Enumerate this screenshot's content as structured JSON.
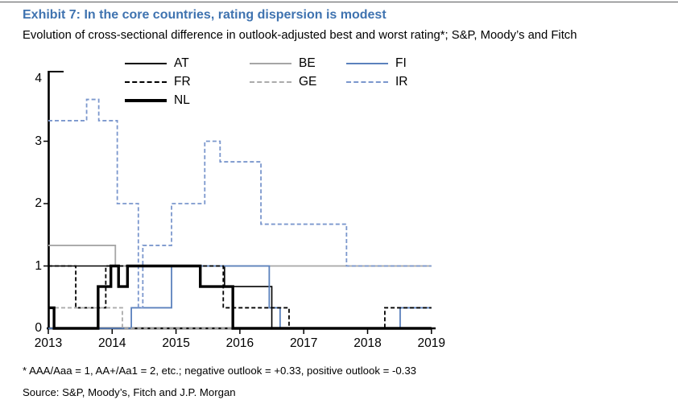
{
  "header": {
    "title": "Exhibit 7: In the core countries, rating dispersion is modest",
    "subtitle": "Evolution of cross-sectional difference in outlook-adjusted best and worst rating*; S&P, Moody’s and Fitch"
  },
  "footnote": "* AAA/Aaa = 1, AA+/Aa1 = 2, etc.; negative outlook = +0.33, positive outlook = -0.33",
  "source": "Source: S&P, Moody’s, Fitch and J.P. Morgan",
  "colors": {
    "title": "#3f73b0",
    "text": "#000000",
    "axis": "#000000",
    "top_border": "#58595b",
    "black_series": "#000000",
    "gray_series": "#a6a6a6",
    "blue_series": "#5b81bd",
    "light_blue_series": "#7b97cd"
  },
  "chart_data": {
    "type": "line",
    "step": true,
    "grid": false,
    "legend_position": "top-left",
    "x_range": [
      2013,
      2019
    ],
    "y_range": [
      0,
      4
    ],
    "x_ticks": [
      "2013",
      "2014",
      "2015",
      "2016",
      "2017",
      "2018",
      "2019"
    ],
    "y_ticks": [
      "0",
      "1",
      "2",
      "3",
      "4"
    ],
    "series": [
      {
        "name": "AT",
        "color": "#000000",
        "line": "solid",
        "weight": 1.6,
        "points": [
          [
            2013,
            1
          ],
          [
            2015.76,
            0.67
          ],
          [
            2016.5,
            0
          ]
        ]
      },
      {
        "name": "BE",
        "color": "#a6a6a6",
        "line": "solid",
        "weight": 1.8,
        "points": [
          [
            2013,
            1.33
          ],
          [
            2014.05,
            1
          ]
        ]
      },
      {
        "name": "FI",
        "color": "#5b81bd",
        "line": "solid",
        "weight": 1.8,
        "points": [
          [
            2013,
            0
          ],
          [
            2014.3,
            0.33
          ],
          [
            2014.93,
            1
          ],
          [
            2016.46,
            0.33
          ],
          [
            2016.63,
            0
          ],
          [
            2018.51,
            0.33
          ]
        ]
      },
      {
        "name": "FR",
        "color": "#000000",
        "line": "dashed",
        "weight": 1.8,
        "points": [
          [
            2013,
            1
          ],
          [
            2013.43,
            0.33
          ],
          [
            2013.9,
            1
          ],
          [
            2015.74,
            0.33
          ],
          [
            2016.77,
            0
          ],
          [
            2018.27,
            0.33
          ]
        ]
      },
      {
        "name": "GE",
        "color": "#ababab",
        "line": "dashed",
        "weight": 1.8,
        "points": [
          [
            2013,
            0.33
          ],
          [
            2014.16,
            0
          ]
        ]
      },
      {
        "name": "IR",
        "color": "#7b97cd",
        "line": "dashed",
        "weight": 1.8,
        "points": [
          [
            2013,
            3.33
          ],
          [
            2013.6,
            3.67
          ],
          [
            2013.79,
            3.33
          ],
          [
            2014.08,
            2
          ],
          [
            2014.41,
            0.33
          ],
          [
            2014.48,
            1.33
          ],
          [
            2014.93,
            2
          ],
          [
            2015.45,
            3
          ],
          [
            2015.69,
            2.67
          ],
          [
            2016.33,
            1.67
          ],
          [
            2017.67,
            1
          ]
        ]
      },
      {
        "name": "NL",
        "color": "#000000",
        "line": "solid",
        "weight": 3.4,
        "points": [
          [
            2013,
            0.33
          ],
          [
            2013.09,
            0
          ],
          [
            2013.78,
            0.67
          ],
          [
            2013.98,
            1
          ],
          [
            2014.1,
            0.67
          ],
          [
            2014.24,
            1
          ],
          [
            2015.38,
            0.67
          ],
          [
            2015.89,
            0
          ]
        ]
      }
    ]
  }
}
